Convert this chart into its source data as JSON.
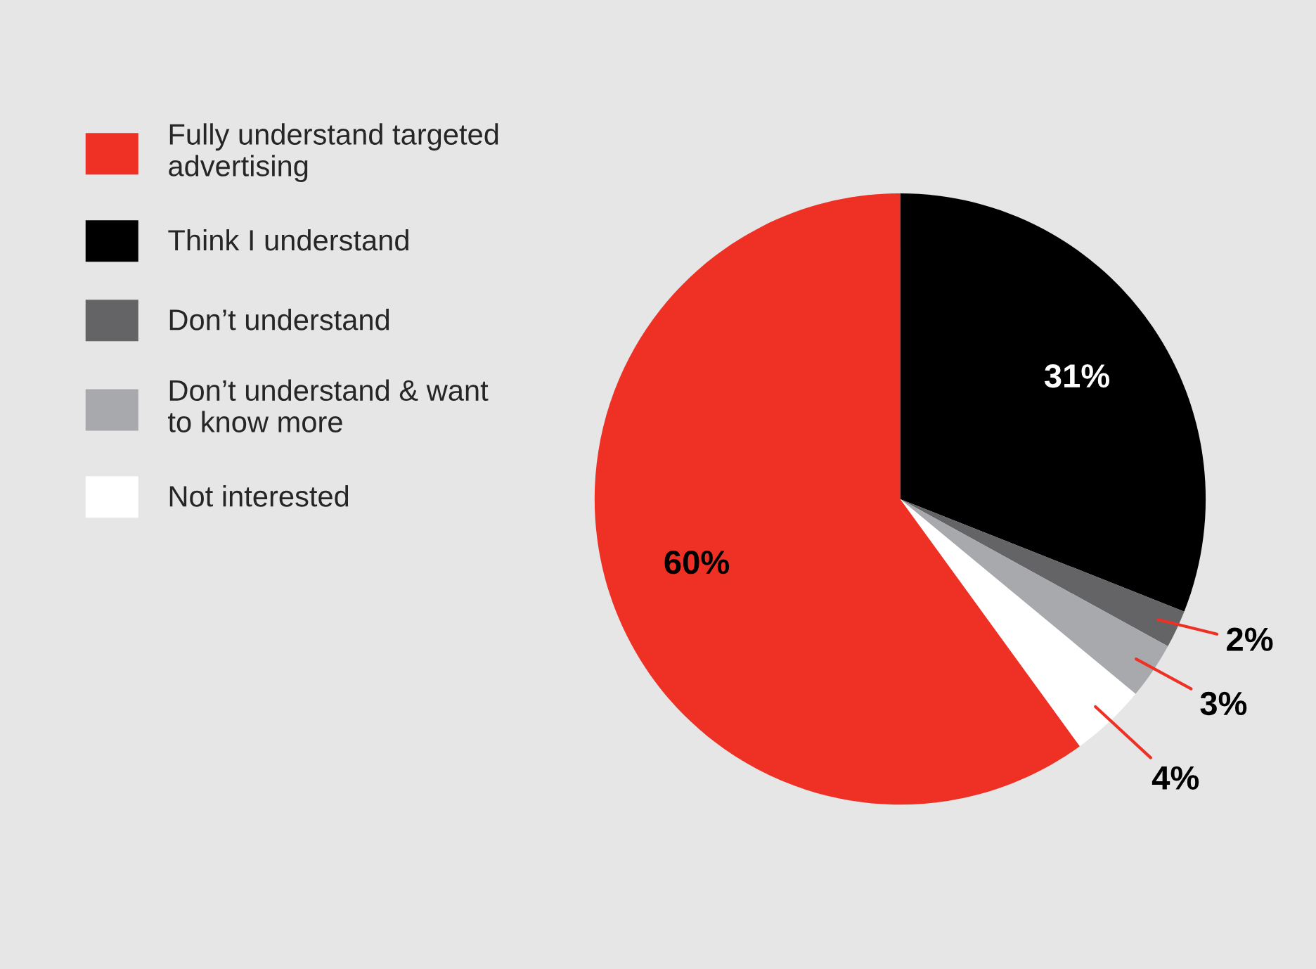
{
  "chart_data": {
    "type": "pie",
    "categories": [
      "Fully understand targeted advertising",
      "Think I understand",
      "Don’t understand",
      "Don’t understand & want to know more",
      "Not interested"
    ],
    "values": [
      60,
      31,
      2,
      3,
      4
    ],
    "colors": [
      "#ee3124",
      "#000000",
      "#646466",
      "#a7a9ac",
      "#ffffff"
    ],
    "value_labels": [
      "60%",
      "31%",
      "2%",
      "3%",
      "4%"
    ],
    "legend": "top left"
  }
}
